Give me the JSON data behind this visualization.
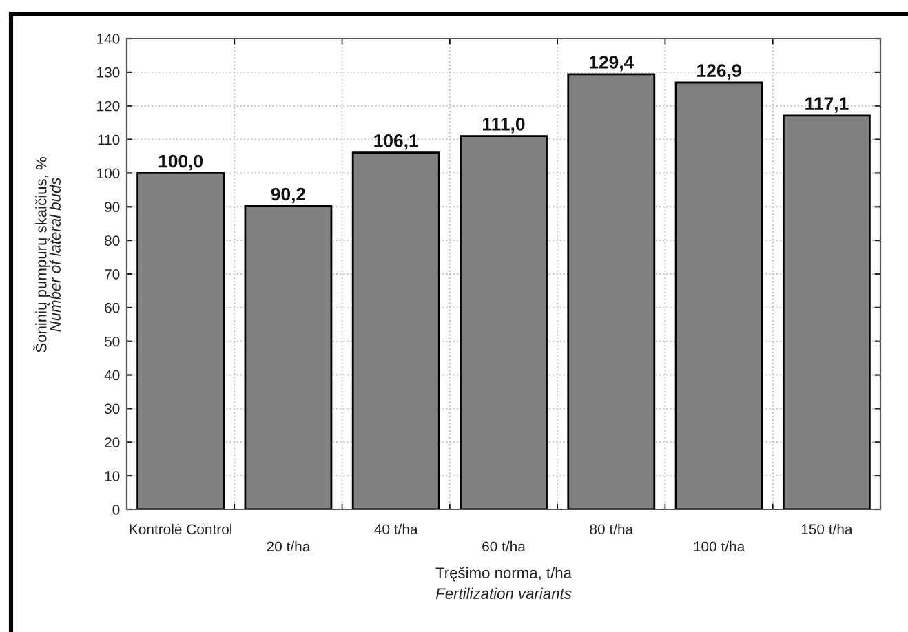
{
  "chart_data": {
    "type": "bar",
    "categories": [
      "Kontrolė Control",
      "20 t/ha",
      "40 t/ha",
      "60 t/ha",
      "80 t/ha",
      "100 t/ha",
      "150 t/ha"
    ],
    "values": [
      100.0,
      90.2,
      106.1,
      111.0,
      129.4,
      126.9,
      117.1
    ],
    "value_labels": [
      "100,0",
      "90,2",
      "106,1",
      "111,0",
      "129,4",
      "126,9",
      "117,1"
    ],
    "color": "#808080",
    "xlabel": "Tręšimo norma, t/ha\nFertilization variants",
    "ylabel": "Šoninių pumpurų skaičius, %\nNumber of lateral buds",
    "ylim": [
      0,
      140
    ],
    "yticks": [
      0,
      10,
      20,
      30,
      40,
      50,
      60,
      70,
      80,
      90,
      100,
      110,
      120,
      130,
      140
    ],
    "grid": true
  }
}
